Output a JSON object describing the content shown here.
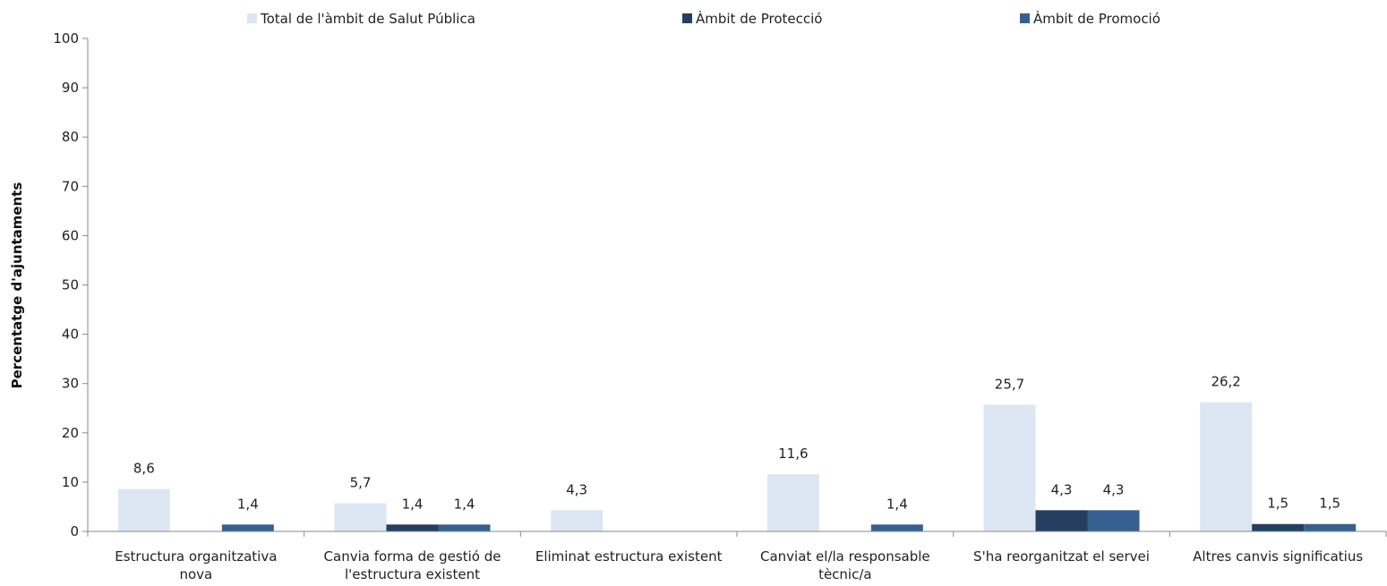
{
  "chart_data": {
    "type": "bar",
    "title": "",
    "xlabel": "",
    "ylabel": "Percentatge d'ajuntaments",
    "ylim": [
      0,
      100
    ],
    "yticks": [
      "0",
      "10",
      "20",
      "30",
      "40",
      "50",
      "60",
      "70",
      "80",
      "90",
      "100"
    ],
    "grid": false,
    "legend_position": "top",
    "categories": [
      [
        "Estructura organitzativa",
        "nova"
      ],
      [
        "Canvia forma de gestió de",
        "l'estructura existent"
      ],
      [
        "Eliminat estructura existent"
      ],
      [
        "Canviat el/la responsable",
        "tècnic/a"
      ],
      [
        "S'ha reorganitzat el servei"
      ],
      [
        "Altres canvis significatius"
      ]
    ],
    "series": [
      {
        "name": "Total de l'àmbit de Salut Pública",
        "color": "#dce6f2",
        "values": [
          8.6,
          5.7,
          4.3,
          11.6,
          25.7,
          26.2
        ],
        "labels": [
          "8,6",
          "5,7",
          "4,3",
          "11,6",
          "25,7",
          "26,2"
        ]
      },
      {
        "name": "Àmbit de Protecció",
        "color": "#243f60",
        "values": [
          null,
          1.4,
          null,
          null,
          4.3,
          1.5
        ],
        "labels": [
          "",
          "1,4",
          "",
          "",
          "4,3",
          "1,5"
        ]
      },
      {
        "name": "Àmbit de Promoció",
        "color": "#376092",
        "values": [
          1.4,
          1.4,
          null,
          1.4,
          4.3,
          1.5
        ],
        "labels": [
          "1,4",
          "1,4",
          "",
          "1,4",
          "4,3",
          "1,5"
        ]
      }
    ]
  }
}
